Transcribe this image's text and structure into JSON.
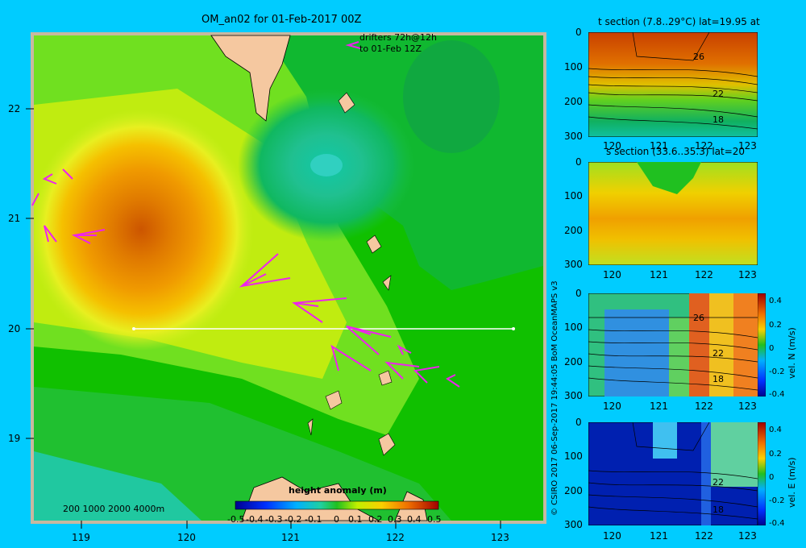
{
  "map": {
    "title": "OM_an02 for 01-Feb-2017 00Z",
    "drifter_note_1": "drifters 72h@12h",
    "drifter_note_2": "to 01-Feb 12Z",
    "depth_legend": "200  1000  2000  4000m",
    "colorbar_title": "height anomaly (m)",
    "colorbar_ticks": [
      "-0.5",
      "-0.4",
      "-0.3",
      "-0.2",
      "-0.1",
      "0",
      "0.1",
      "0.2",
      "0.3",
      "0.4",
      "0.5"
    ],
    "x_ticks": [
      "119",
      "120",
      "121",
      "122",
      "123"
    ],
    "y_ticks": [
      "22",
      "21",
      "20",
      "19"
    ],
    "colors": {
      "background": "#00ccff",
      "drifters": "#ee22ee",
      "land": "#f5c8a0",
      "section_line": "#ffffff"
    }
  },
  "credit": "© CSIRO 2017   06-Sep-2017 19:44:05 BoM OceanMAPS v3",
  "chart_data": [
    {
      "type": "heatmap",
      "title": "OM_an02 for 01-Feb-2017 00Z",
      "xlim": [
        118.5,
        123.5
      ],
      "ylim": [
        18.3,
        22.7
      ],
      "x_ticks": [
        119,
        120,
        121,
        122,
        123
      ],
      "y_ticks": [
        19,
        20,
        21,
        22
      ],
      "colorbar_label": "height anomaly (m)",
      "colorbar_range": [
        -0.5,
        0.5
      ],
      "section_line": {
        "lat": 20,
        "lon_start": 119.5,
        "lon_end": 123.2
      },
      "features": [
        {
          "kind": "high",
          "lon": 119.6,
          "lat": 20.9,
          "value": 0.35
        },
        {
          "kind": "low",
          "lon": 121.4,
          "lat": 21.5,
          "value": -0.15
        }
      ]
    },
    {
      "type": "heatmap",
      "title": "t section (7.8..29°C) lat=19.95 at",
      "xlim": [
        119.5,
        123.2
      ],
      "ylim": [
        300,
        0
      ],
      "x_ticks": [
        "120",
        "121",
        "122",
        "123"
      ],
      "y_ticks": [
        "0",
        "100",
        "200",
        "300"
      ],
      "contour_labels": [
        "26",
        "22",
        "18"
      ]
    },
    {
      "type": "heatmap",
      "title": "s section (33.6..35.3) lat=20",
      "xlim": [
        119.5,
        123.2
      ],
      "ylim": [
        300,
        0
      ],
      "x_ticks": [
        "120",
        "121",
        "122",
        "123"
      ],
      "y_ticks": [
        "0",
        "100",
        "200",
        "300"
      ]
    },
    {
      "type": "heatmap",
      "title": "",
      "xlim": [
        119.5,
        123.2
      ],
      "ylim": [
        300,
        0
      ],
      "x_ticks": [
        "120",
        "121",
        "122",
        "123"
      ],
      "y_ticks": [
        "0",
        "100",
        "200",
        "300"
      ],
      "contour_labels": [
        "26",
        "22",
        "18"
      ],
      "colorbar_label": "vel. N (m/s)",
      "colorbar_ticks": [
        "0.4",
        "0.2",
        "0",
        "-0.2",
        "-0.4"
      ]
    },
    {
      "type": "heatmap",
      "title": "",
      "xlim": [
        119.5,
        123.2
      ],
      "ylim": [
        300,
        0
      ],
      "x_ticks": [
        "120",
        "121",
        "122",
        "123"
      ],
      "y_ticks": [
        "0",
        "100",
        "200",
        "300"
      ],
      "contour_labels": [
        "22",
        "18"
      ],
      "colorbar_label": "vel. E (m/s)",
      "colorbar_ticks": [
        "0.4",
        "0.2",
        "0",
        "-0.2",
        "-0.4"
      ]
    }
  ]
}
